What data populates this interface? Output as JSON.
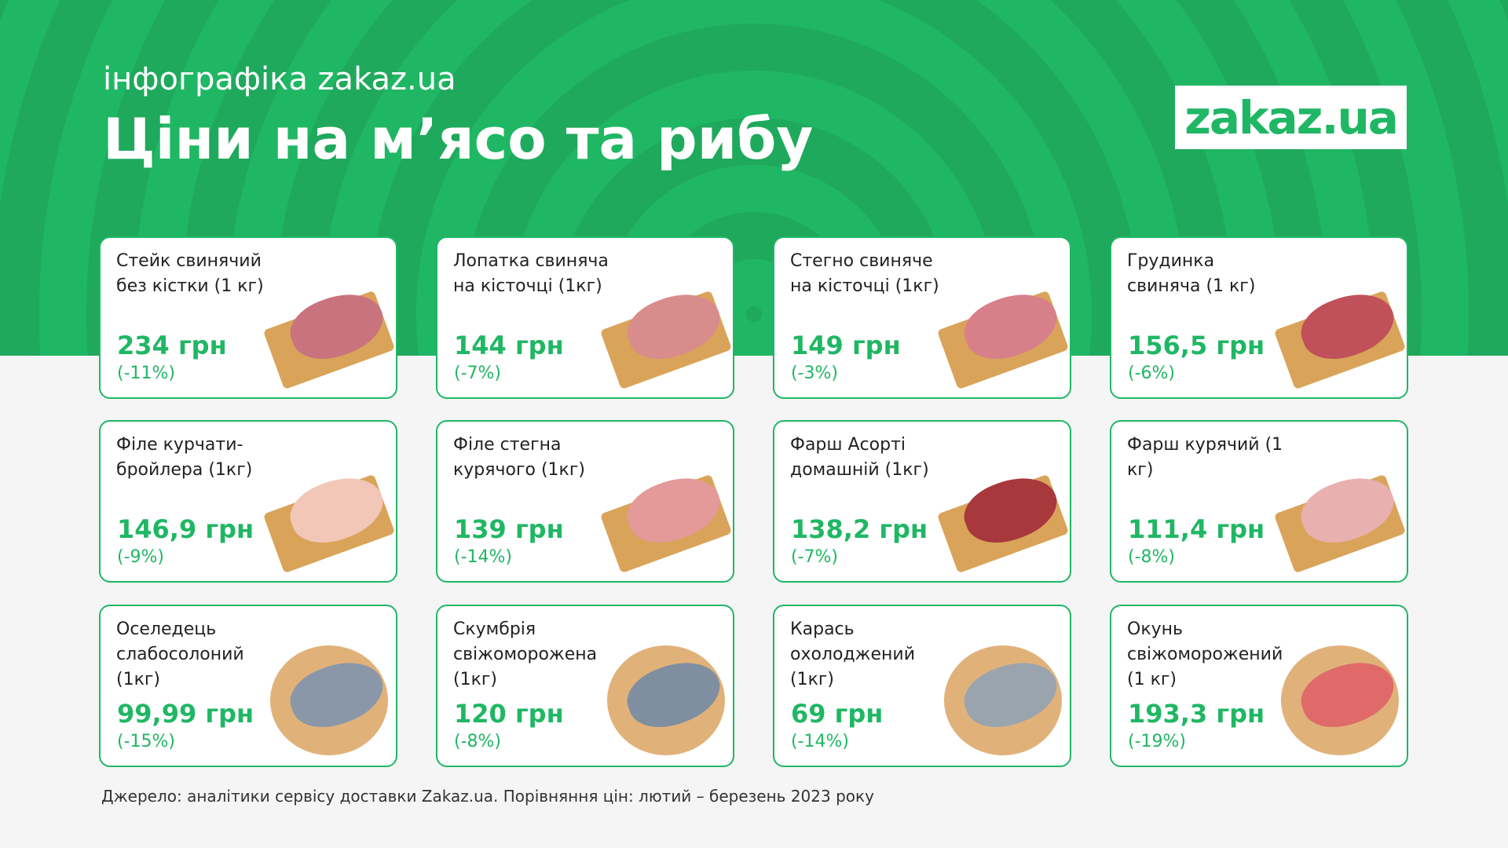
{
  "header": {
    "subtitle": "інфографіка zakaz.ua",
    "title": "Ціни на м’ясо та рибу",
    "logo": "zakaz.ua"
  },
  "colors": {
    "brand": "#20b764",
    "background": "#f5f5f5"
  },
  "cards": [
    {
      "name": "Стейк свинячий без кістки (1 кг)",
      "price": "234 грн",
      "change": "(-11%)",
      "food": "#c9737e",
      "board": "square"
    },
    {
      "name": "Лопатка свиняча на кісточці (1кг)",
      "price": "144 грн",
      "change": "(-7%)",
      "food": "#d98c8c",
      "board": "square"
    },
    {
      "name": "Стегно свиняче на кісточці (1кг)",
      "price": "149 грн",
      "change": "(-3%)",
      "food": "#d7808a",
      "board": "square"
    },
    {
      "name": "Грудинка свиняча (1 кг)",
      "price": "156,5 грн",
      "change": "(-6%)",
      "food": "#c0505a",
      "board": "square"
    },
    {
      "name": "Філе курчати-бройлера (1кг)",
      "price": "146,9 грн",
      "change": "(-9%)",
      "food": "#f2c7b8",
      "board": "square"
    },
    {
      "name": "Філе стегна курячого (1кг)",
      "price": "139 грн",
      "change": "(-14%)",
      "food": "#e39a98",
      "board": "square"
    },
    {
      "name": "Фарш Асорті домашній (1кг)",
      "price": "138,2 грн",
      "change": "(-7%)",
      "food": "#a8383c",
      "board": "square"
    },
    {
      "name": "Фарш курячий (1 кг)",
      "price": "111,4 грн",
      "change": "(-8%)",
      "food": "#e9b0b0",
      "board": "square"
    },
    {
      "name": "Оселедець слабосолоний (1кг)",
      "price": "99,99 грн",
      "change": "(-15%)",
      "food": "#8a97a8",
      "board": "round"
    },
    {
      "name": "Скумбрія свіжоморожена (1кг)",
      "price": "120 грн",
      "change": "(-8%)",
      "food": "#7f8ea0",
      "board": "round"
    },
    {
      "name": "Карась охолоджений (1кг)",
      "price": "69 грн",
      "change": "(-14%)",
      "food": "#9aa4ae",
      "board": "round"
    },
    {
      "name": "Окунь свіжоморожений (1 кг)",
      "price": "193,3 грн",
      "change": "(-19%)",
      "food": "#e06a6a",
      "board": "round"
    }
  ],
  "footer": "Джерело: аналітики сервісу доставки Zakaz.ua. Порівняння цін: лютий – березень 2023 року"
}
